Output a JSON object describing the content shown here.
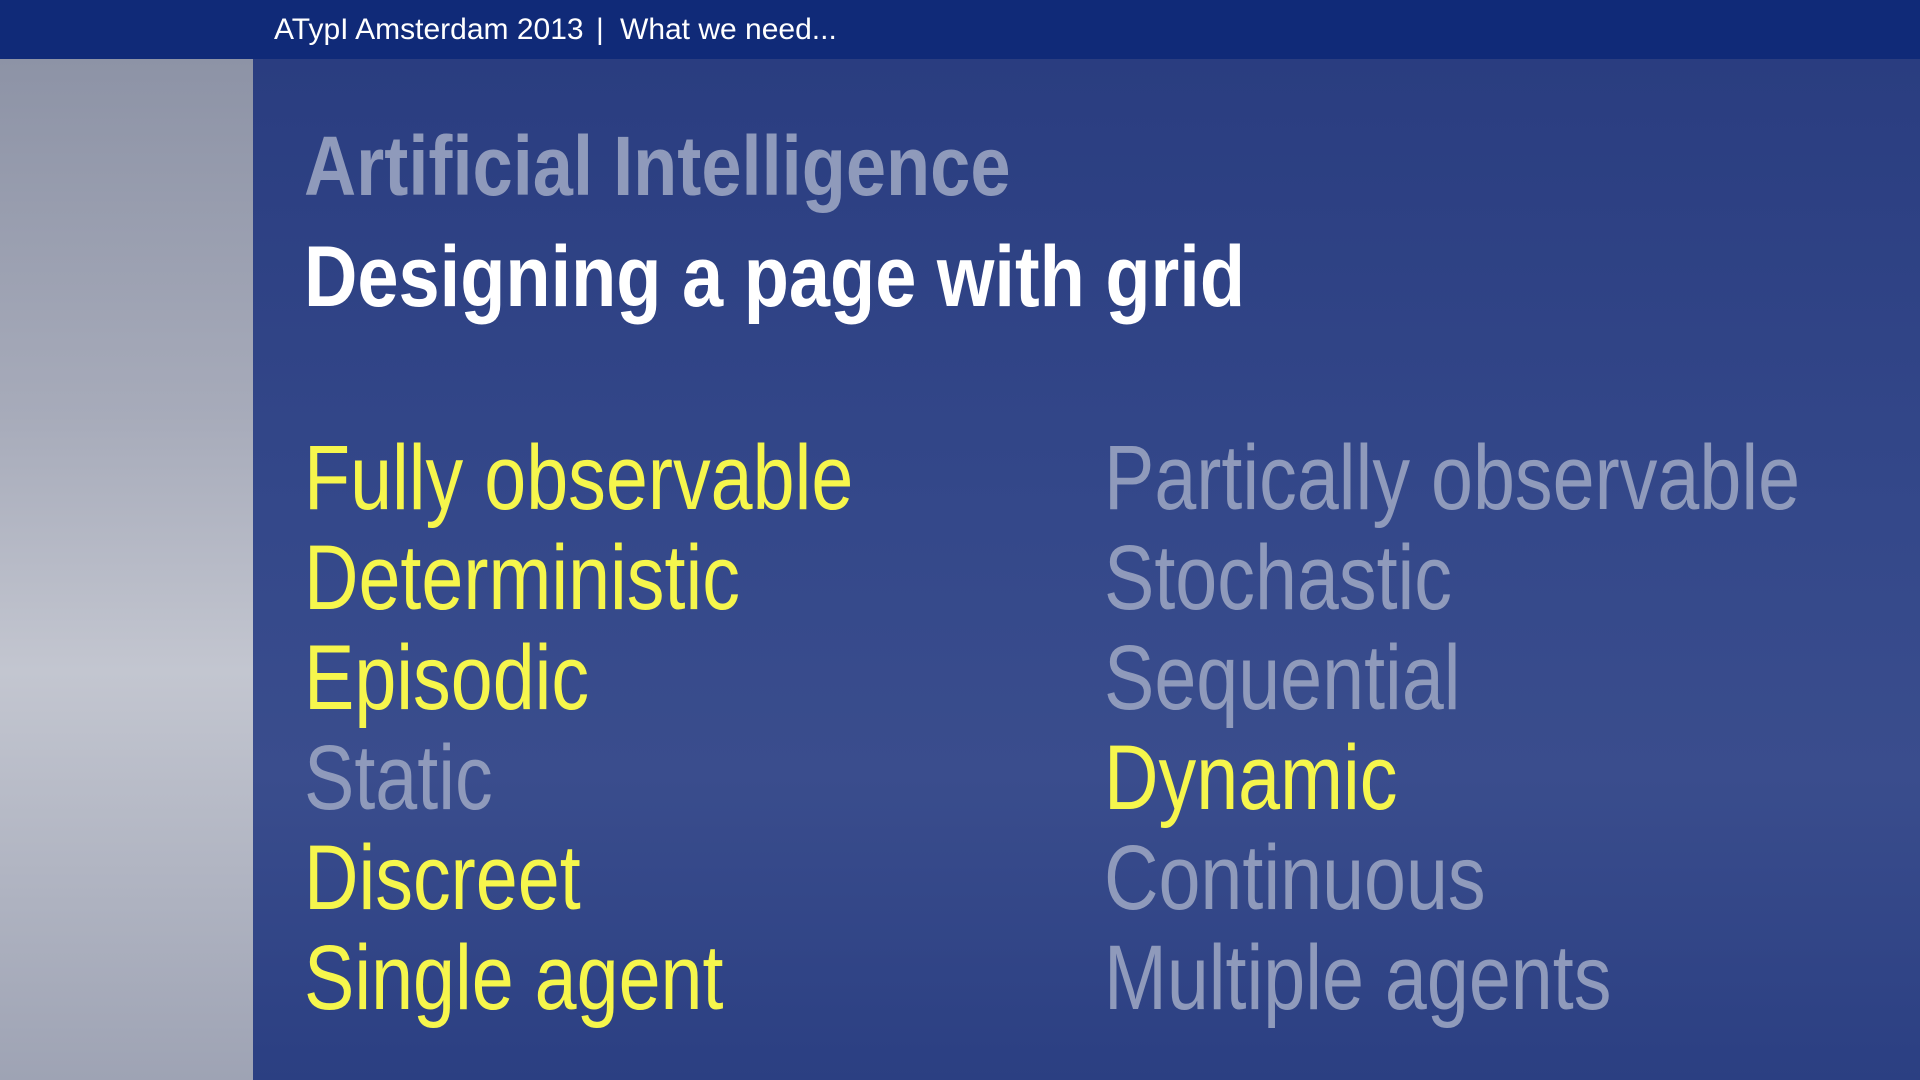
{
  "header": {
    "event": "ATypI Amsterdam 2013",
    "separator": "|",
    "section": "What we need..."
  },
  "title": "Artificial Intelligence",
  "subtitle": "Designing a page with grid",
  "left_column": [
    {
      "text": "Fully observable",
      "highlighted": true
    },
    {
      "text": "Deterministic",
      "highlighted": true
    },
    {
      "text": "Episodic",
      "highlighted": true
    },
    {
      "text": "Static",
      "highlighted": false
    },
    {
      "text": "Discreet",
      "highlighted": true
    },
    {
      "text": "Single agent",
      "highlighted": true
    }
  ],
  "right_column": [
    {
      "text": "Partically observable",
      "highlighted": false
    },
    {
      "text": "Stochastic",
      "highlighted": false
    },
    {
      "text": "Sequential",
      "highlighted": false
    },
    {
      "text": "Dynamic",
      "highlighted": true
    },
    {
      "text": "Continuous",
      "highlighted": false
    },
    {
      "text": "Multiple agents",
      "highlighted": false
    }
  ]
}
